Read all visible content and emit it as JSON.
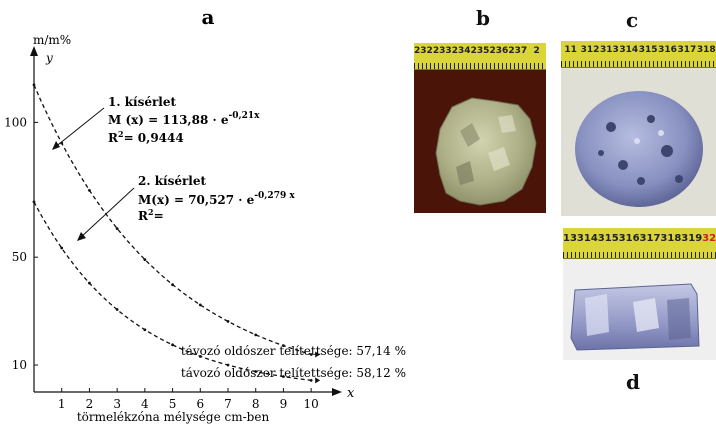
{
  "chart_data": {
    "type": "line",
    "panel_label": "a",
    "xlabel": "törmelékzóna mélysége cm-ben",
    "ylabel": "m/m%",
    "x_axis_letter": "x",
    "y_axis_letter": "y",
    "xlim": [
      0,
      10.5
    ],
    "ylim": [
      0,
      125
    ],
    "x_ticks": [
      1,
      2,
      3,
      4,
      5,
      6,
      7,
      8,
      9,
      10
    ],
    "y_ticks": [
      {
        "value": 10,
        "label": "10"
      },
      {
        "value": 50,
        "label": "50"
      },
      {
        "value": 100,
        "label": "100"
      }
    ],
    "grid": false,
    "series": [
      {
        "name": "1. kísérlet",
        "equation_prefix": "M (x) = 113,88 · e",
        "exponent": "-0,21x",
        "r2_label": "R",
        "r2_value": "= 0,9444",
        "a": 113.88,
        "k": 0.21,
        "x": [
          0,
          1,
          2,
          3,
          4,
          5,
          6,
          7,
          8,
          9,
          10
        ],
        "values": [
          113.9,
          92.3,
          74.8,
          60.6,
          49.1,
          39.8,
          32.3,
          26.2,
          21.2,
          17.2,
          13.9
        ],
        "end_annotation": "távozó oldószer telítettsége: 57,14 %"
      },
      {
        "name": "2. kísérlet",
        "equation_prefix": "M(x) = 70,527 · e",
        "exponent": "-0,279 x",
        "r2_label": "R",
        "r2_value": "=",
        "a": 70.527,
        "k": 0.279,
        "x": [
          0,
          1,
          2,
          3,
          4,
          5,
          6,
          7,
          8,
          9,
          10
        ],
        "values": [
          70.5,
          53.4,
          40.4,
          30.6,
          23.1,
          17.5,
          13.2,
          10.0,
          7.6,
          5.7,
          4.3
        ],
        "end_annotation": "távozó oldószer telítettsége: 58,12 %"
      }
    ]
  },
  "photos": {
    "b": {
      "letter": "b",
      "ruler_numbers": [
        "232",
        "233",
        "234",
        "235",
        "236",
        "237",
        "2"
      ]
    },
    "c": {
      "letter": "c",
      "ruler_numbers": [
        "11",
        "312",
        "313",
        "314",
        "315",
        "316",
        "317",
        "318"
      ]
    },
    "d": {
      "letter": "d",
      "ruler_numbers": [
        "13",
        "314",
        "315",
        "316",
        "317",
        "318",
        "319"
      ],
      "ruler_last": "32"
    }
  },
  "colors": {
    "ink": "#111111",
    "ruler": "#d9d53a",
    "ruler_accent": "#d0202a",
    "stone_b": "#b8ba8f",
    "stone_cd": "#8d96c2"
  }
}
